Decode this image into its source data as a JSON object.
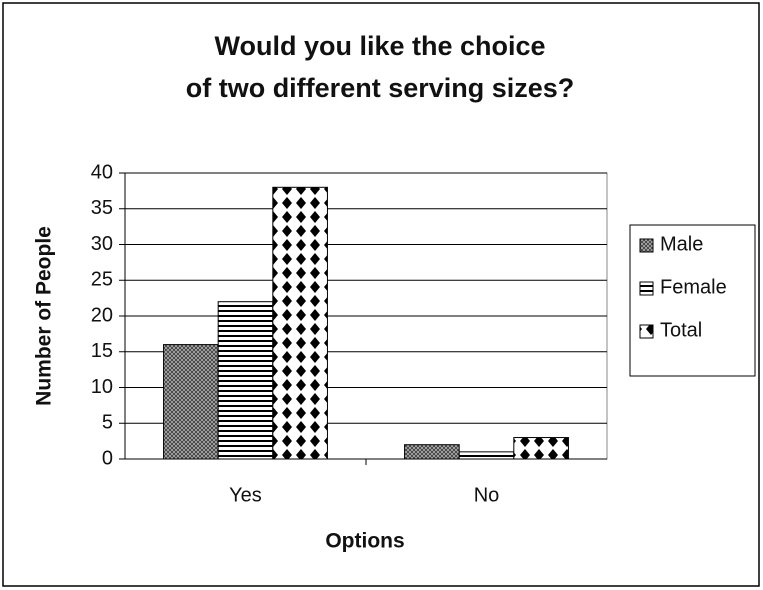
{
  "chart_data": {
    "type": "bar",
    "title": "Would you like the choice of two different serving sizes?",
    "x_label": "Options",
    "y_label": "Number of People",
    "categories": [
      "Yes",
      "No"
    ],
    "series": [
      {
        "name": "Male",
        "color": "#555555",
        "pattern": "crosshatch",
        "values": [
          16,
          2
        ]
      },
      {
        "name": "Female",
        "color": "#000000",
        "pattern": "horizontal",
        "values": [
          22,
          1
        ]
      },
      {
        "name": "Total",
        "color": "#000000",
        "pattern": "diamond",
        "values": [
          38,
          3
        ]
      }
    ],
    "ylim": [
      0,
      40
    ],
    "yticks": [
      0,
      5,
      10,
      15,
      20,
      25,
      30,
      35,
      40
    ],
    "grid": true,
    "legend": "right"
  }
}
